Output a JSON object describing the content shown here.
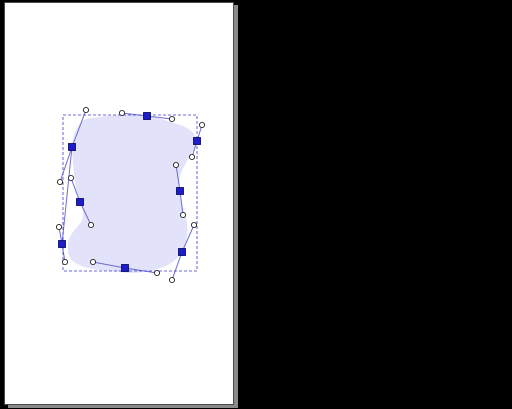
{
  "colors": {
    "background": "#000000",
    "page": "#ffffff",
    "page_border": "#4a4a4a",
    "page_shadow": "#8a8a8a",
    "shape_fill": "#e2e2fb",
    "path_stroke": "#6c6cd2",
    "bbox_stroke": "#3a3ad6",
    "node_fill": "#1d1dc9",
    "node_stroke": "#000060",
    "handle_fill": "#ffffff",
    "handle_stroke": "#222222"
  },
  "tool": {
    "mode": "node-editing",
    "selected_object": "closed-bezier-shape"
  }
}
